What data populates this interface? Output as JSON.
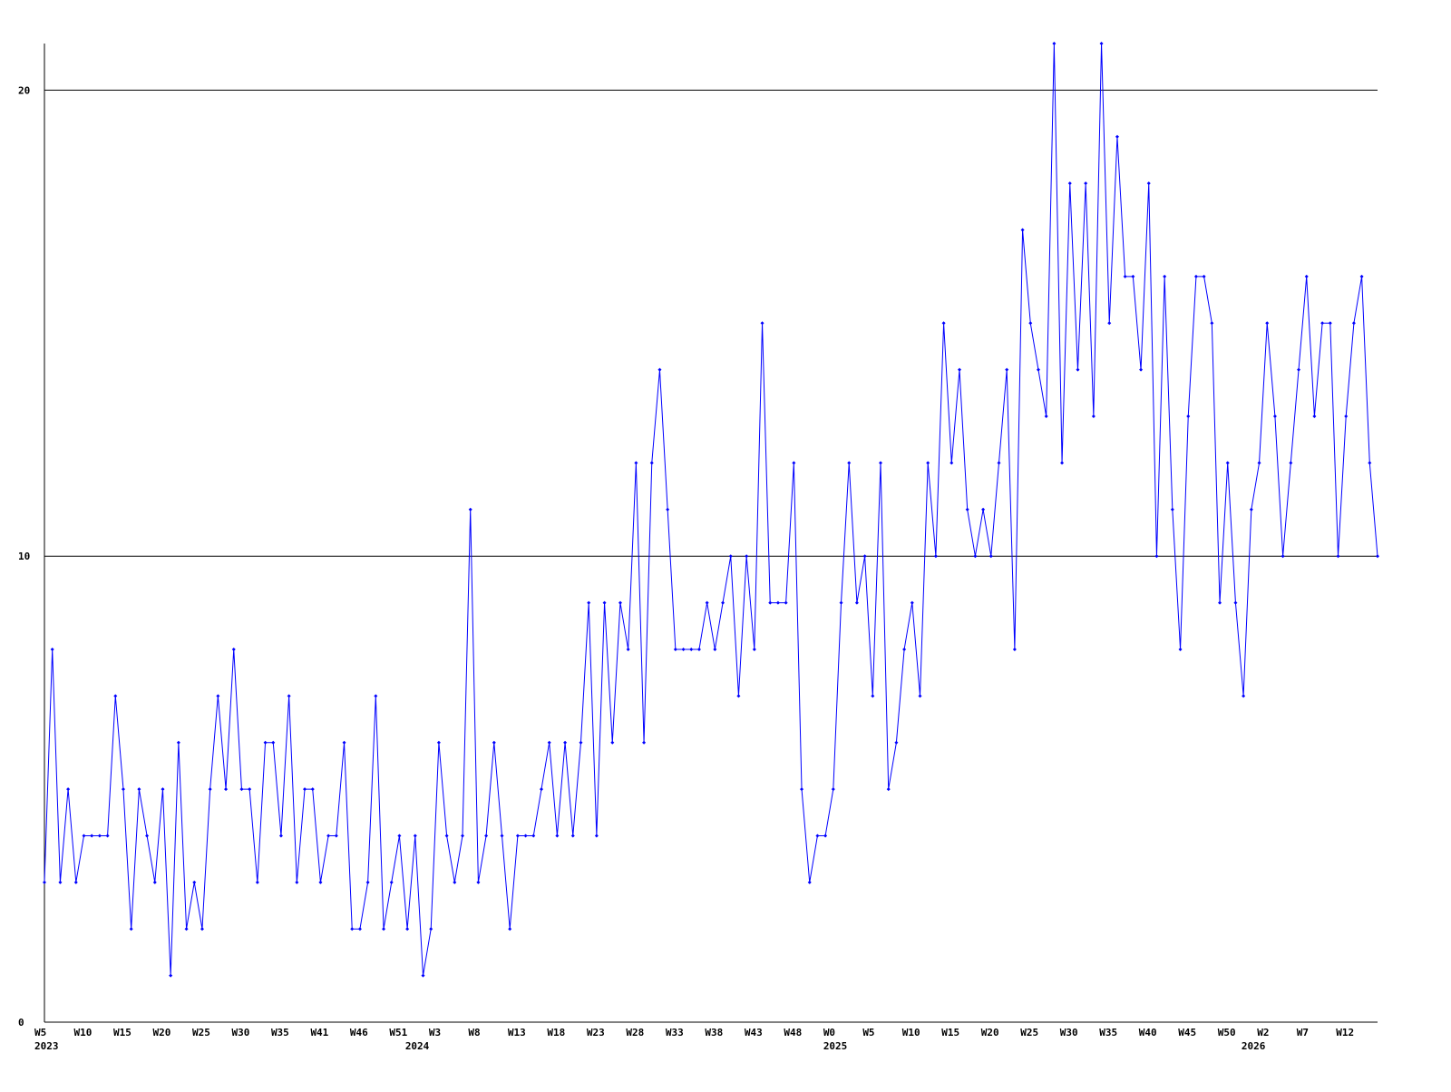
{
  "chart_data": {
    "type": "line",
    "categories": [
      "W5",
      null,
      null,
      null,
      null,
      "W10",
      null,
      null,
      null,
      null,
      "W15",
      null,
      null,
      null,
      null,
      "W20",
      null,
      null,
      null,
      null,
      "W25",
      null,
      null,
      null,
      null,
      "W30",
      null,
      null,
      null,
      null,
      "W35",
      null,
      null,
      null,
      null,
      "W41",
      null,
      null,
      null,
      null,
      "W46",
      null,
      null,
      null,
      null,
      "W51",
      null,
      null,
      null,
      null,
      "W3",
      null,
      null,
      null,
      null,
      "W8",
      null,
      null,
      null,
      null,
      "W13",
      null,
      null,
      null,
      null,
      "W18",
      null,
      null,
      null,
      null,
      "W23",
      null,
      null,
      null,
      null,
      "W28",
      null,
      null,
      null,
      null,
      "W33",
      null,
      null,
      null,
      null,
      "W38",
      null,
      null,
      null,
      null,
      "W43",
      null,
      null,
      null,
      null,
      "W48",
      null,
      null,
      null,
      null,
      "W0",
      null,
      null,
      null,
      null,
      "W5",
      null,
      null,
      null,
      null,
      "W10",
      null,
      null,
      null,
      null,
      "W15",
      null,
      null,
      null,
      null,
      "W20",
      null,
      null,
      null,
      null,
      "W25",
      null,
      null,
      null,
      null,
      "W30",
      null,
      null,
      null,
      null,
      "W35",
      null,
      null,
      null,
      null,
      "W40",
      null,
      null,
      null,
      null,
      "W45",
      null,
      null,
      null,
      null,
      "W50",
      null,
      null,
      null,
      null,
      "W2",
      null,
      null,
      null,
      null,
      "W7",
      null,
      null,
      null,
      null,
      "W12",
      null,
      null,
      null,
      null
    ],
    "years": [
      "2023",
      null,
      null,
      null,
      null,
      null,
      null,
      null,
      null,
      null,
      null,
      null,
      null,
      null,
      null,
      null,
      null,
      null,
      null,
      null,
      null,
      null,
      null,
      null,
      null,
      null,
      null,
      null,
      null,
      null,
      null,
      null,
      null,
      null,
      null,
      null,
      null,
      null,
      null,
      null,
      null,
      null,
      null,
      null,
      null,
      null,
      null,
      "2024",
      null,
      null,
      null,
      null,
      null,
      null,
      null,
      null,
      null,
      null,
      null,
      null,
      null,
      null,
      null,
      null,
      null,
      null,
      null,
      null,
      null,
      null,
      null,
      null,
      null,
      null,
      null,
      null,
      null,
      null,
      null,
      null,
      null,
      null,
      null,
      null,
      null,
      null,
      null,
      null,
      null,
      null,
      null,
      null,
      null,
      null,
      null,
      null,
      null,
      null,
      null,
      null,
      "2025",
      null,
      null,
      null,
      null,
      null,
      null,
      null,
      null,
      null,
      null,
      null,
      null,
      null,
      null,
      null,
      null,
      null,
      null,
      null,
      null,
      null,
      null,
      null,
      null,
      null,
      null,
      null,
      null,
      null,
      null,
      null,
      null,
      null,
      null,
      null,
      null,
      null,
      null,
      null,
      null,
      null,
      null,
      null,
      null,
      null,
      null,
      null,
      null,
      null,
      null,
      null,
      null,
      "2026",
      null,
      null,
      null,
      null,
      null,
      null,
      null,
      null,
      null,
      null,
      null,
      null,
      null,
      null,
      null
    ],
    "values": [
      3,
      8,
      3,
      5,
      3,
      4,
      4,
      4,
      4,
      7,
      5,
      2,
      5,
      4,
      3,
      5,
      1,
      6,
      2,
      3,
      2,
      5,
      7,
      5,
      8,
      5,
      5,
      3,
      6,
      6,
      4,
      7,
      3,
      5,
      5,
      3,
      4,
      4,
      6,
      2,
      2,
      3,
      7,
      2,
      3,
      4,
      2,
      4,
      1,
      2,
      6,
      4,
      3,
      4,
      11,
      3,
      4,
      6,
      4,
      2,
      4,
      4,
      4,
      5,
      6,
      4,
      6,
      4,
      6,
      9,
      4,
      9,
      6,
      9,
      8,
      12,
      6,
      12,
      14,
      11,
      8,
      8,
      8,
      8,
      9,
      8,
      9,
      10,
      7,
      10,
      8,
      15,
      9,
      9,
      9,
      12,
      5,
      3,
      4,
      4,
      5,
      9,
      12,
      9,
      10,
      7,
      12,
      5,
      6,
      8,
      9,
      7,
      12,
      10,
      15,
      12,
      14,
      11,
      10,
      11,
      10,
      12,
      14,
      8,
      17,
      15,
      14,
      13,
      21,
      12,
      18,
      14,
      18,
      13,
      21,
      15,
      19,
      16,
      16,
      14,
      18,
      10,
      16,
      11,
      8,
      13,
      16,
      16,
      15,
      9,
      12,
      9,
      7,
      11,
      12,
      15,
      13,
      10,
      12,
      14,
      16,
      13,
      15,
      15,
      10,
      13,
      15,
      16,
      12,
      10
    ],
    "color": "#0000ff",
    "ylim": [
      0,
      21
    ],
    "yticks": [
      0,
      10,
      20
    ],
    "grid": true
  }
}
